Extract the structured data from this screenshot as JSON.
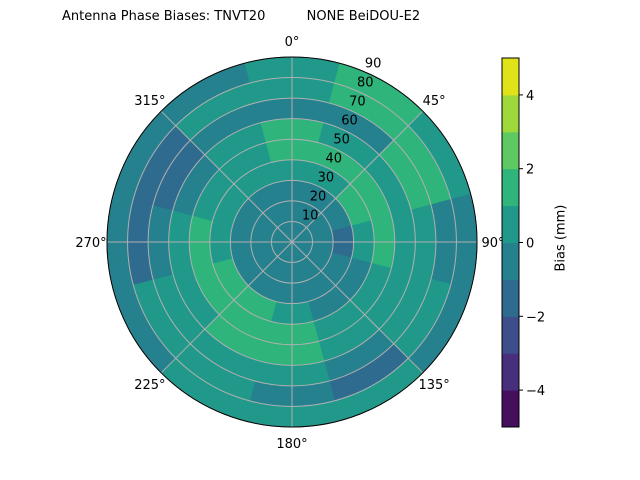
{
  "chart_data": {
    "type": "heatmap",
    "projection": "polar",
    "title": "Antenna Phase Biases: TNVT20          NONE BeiDOU-E2",
    "theta_zero": "north",
    "theta_direction": "clockwise",
    "theta_ticks": [
      "0°",
      "45°",
      "90°",
      "135°",
      "180°",
      "225°",
      "270°",
      "315°"
    ],
    "theta_tick_values": [
      0,
      45,
      90,
      135,
      180,
      225,
      270,
      315
    ],
    "r_ticks": [
      "10",
      "20",
      "30",
      "40",
      "50",
      "60",
      "70",
      "80",
      "90"
    ],
    "r_tick_values": [
      10,
      20,
      30,
      40,
      50,
      60,
      70,
      80,
      90
    ],
    "rlim": [
      0,
      90
    ],
    "grid": true,
    "azimuth_centers": [
      0,
      30,
      60,
      90,
      120,
      150,
      180,
      210,
      240,
      270,
      300,
      330
    ],
    "zenith_centers": [
      5,
      15,
      25,
      35,
      45,
      55,
      65,
      75,
      85
    ],
    "values": [
      [
        -0.5,
        -0.5,
        -0.5,
        -0.5,
        -0.5,
        -0.5,
        -0.5,
        -0.5,
        -0.5,
        -0.5,
        -0.5,
        -0.5
      ],
      [
        -0.5,
        -0.5,
        -0.5,
        -0.5,
        -0.5,
        -0.5,
        -0.5,
        -0.5,
        -0.5,
        -0.5,
        -0.5,
        -0.5
      ],
      [
        -0.5,
        -0.5,
        -0.5,
        -1.5,
        -0.5,
        -0.5,
        -0.5,
        -0.5,
        -0.5,
        -0.5,
        -0.5,
        -0.5
      ],
      [
        0.5,
        0.5,
        1.5,
        0.5,
        -0.5,
        -0.5,
        0.5,
        1.5,
        1.5,
        0.5,
        0.5,
        0.5
      ],
      [
        1.5,
        1.5,
        1.5,
        1.5,
        0.5,
        0.5,
        1.5,
        1.5,
        1.5,
        1.5,
        0.5,
        0.5
      ],
      [
        1.5,
        0.5,
        0.5,
        0.5,
        0.5,
        0.5,
        1.5,
        1.5,
        0.5,
        0.5,
        -0.5,
        0.5
      ],
      [
        -0.5,
        -0.5,
        1.5,
        0.5,
        0.5,
        -0.5,
        0.5,
        0.5,
        0.5,
        -0.5,
        -1.5,
        -0.5
      ],
      [
        0.5,
        1.5,
        1.5,
        -0.5,
        0.5,
        -1.5,
        -0.5,
        0.5,
        0.5,
        -1.5,
        -1.5,
        0.5
      ],
      [
        0.5,
        1.5,
        0.5,
        -0.5,
        -0.5,
        0.5,
        0.5,
        0.5,
        -0.5,
        -0.5,
        -0.5,
        -0.5
      ]
    ],
    "colorbar": {
      "label": "Bias (mm)",
      "levels": [
        -5,
        -4,
        -3,
        -2,
        -1,
        0,
        1,
        2,
        3,
        4,
        5
      ],
      "ticks": [
        "−4",
        "−2",
        "0",
        "2",
        "4"
      ],
      "tick_values": [
        -4,
        -2,
        0,
        2,
        4
      ],
      "colors": [
        "#450f5d",
        "#472f7d",
        "#3c4f8a",
        "#2f6b8e",
        "#26818e",
        "#20998a",
        "#2fb47c",
        "#5ec962",
        "#9dd93b",
        "#dfe318"
      ],
      "colormap": "viridis"
    }
  }
}
